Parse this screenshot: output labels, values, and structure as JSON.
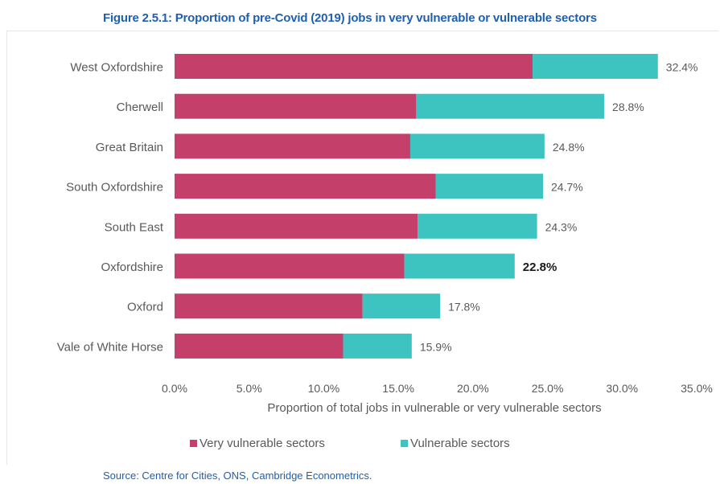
{
  "figure_title": "Figure 2.5.1: Proportion of pre-Covid (2019) jobs in very vulnerable or vulnerable sectors",
  "source": "Source: Centre for Cities, ONS, Cambridge Econometrics.",
  "colors": {
    "very_vulnerable": "#c43f6a",
    "vulnerable": "#3ec4c0",
    "title": "#1f5fb0"
  },
  "chart_data": {
    "type": "bar",
    "orientation": "horizontal",
    "stacked": true,
    "categories": [
      "West Oxfordshire",
      "Cherwell",
      "Great Britain",
      "South Oxfordshire",
      "South East",
      "Oxfordshire",
      "Oxford",
      "Vale of White Horse"
    ],
    "series": [
      {
        "name": "Very vulnerable sectors",
        "values": [
          24.0,
          16.2,
          15.8,
          17.5,
          16.3,
          15.4,
          12.6,
          11.3
        ]
      },
      {
        "name": "Vulnerable sectors",
        "values": [
          8.4,
          12.6,
          9.0,
          7.2,
          8.0,
          7.4,
          5.2,
          4.6
        ]
      }
    ],
    "totals": [
      32.4,
      28.8,
      24.8,
      24.7,
      24.3,
      22.8,
      17.8,
      15.9
    ],
    "total_labels": [
      "32.4%",
      "28.8%",
      "24.8%",
      "24.7%",
      "24.3%",
      "22.8%",
      "17.8%",
      "15.9%"
    ],
    "highlight_category": "Oxfordshire",
    "xlabel": "Proportion of total jobs in vulnerable or very vulnerable sectors",
    "xlim": [
      0,
      35
    ],
    "xticks": [
      0,
      5,
      10,
      15,
      20,
      25,
      30,
      35
    ],
    "xtick_labels": [
      "0.0%",
      "5.0%",
      "10.0%",
      "15.0%",
      "20.0%",
      "25.0%",
      "30.0%",
      "35.0%"
    ],
    "grid": false,
    "legend_position": "bottom"
  }
}
